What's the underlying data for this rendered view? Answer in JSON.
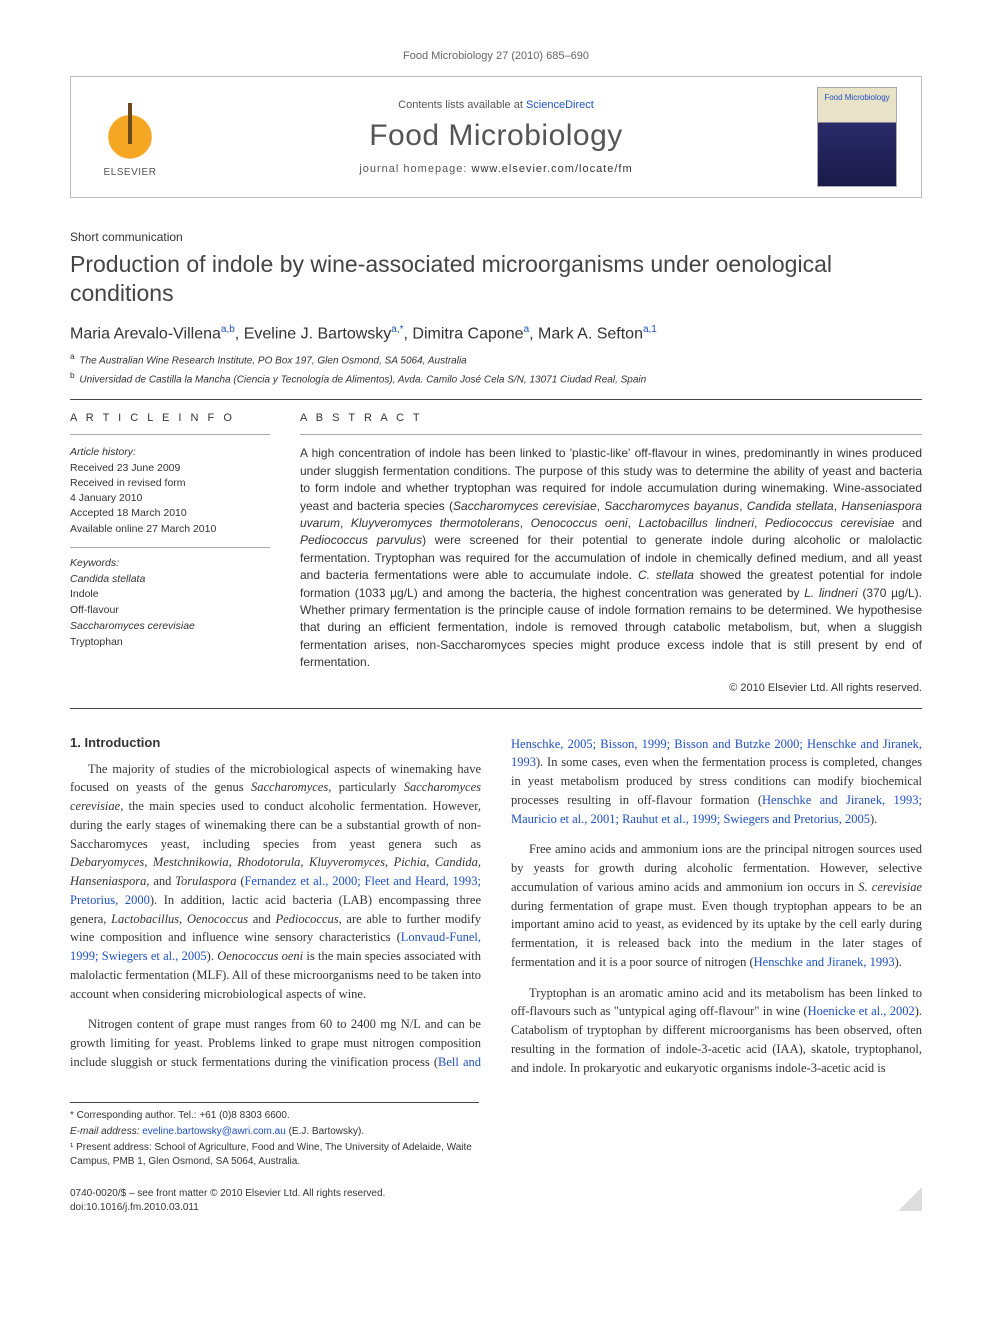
{
  "running_head": "Food Microbiology 27 (2010) 685–690",
  "masthead": {
    "publisher_label": "ELSEVIER",
    "contents_prefix": "Contents lists available at ",
    "contents_link": "ScienceDirect",
    "journal": "Food Microbiology",
    "homepage_prefix": "journal homepage: ",
    "homepage_url": "www.elsevier.com/locate/fm",
    "cover_label": "Food Microbiology"
  },
  "article": {
    "type": "Short communication",
    "title": "Production of indole by wine-associated microorganisms under oenological conditions",
    "authors_html": "Maria Arevalo-Villena<sup>a,b</sup>, Eveline J. Bartowsky<sup>a,*</sup>, Dimitra Capone<sup>a</sup>, Mark A. Sefton<sup>a,1</sup>",
    "affiliations": [
      {
        "sup": "a",
        "text": "The Australian Wine Research Institute, PO Box 197, Glen Osmond, SA 5064, Australia"
      },
      {
        "sup": "b",
        "text": "Universidad de Castilla la Mancha (Ciencia y Tecnología de Alimentos), Avda. Camilo José Cela S/N, 13071 Ciudad Real, Spain"
      }
    ]
  },
  "info": {
    "heading": "A R T I C L E   I N F O",
    "history_label": "Article history:",
    "received": "Received 23 June 2009",
    "revised1": "Received in revised form",
    "revised2": "4 January 2010",
    "accepted": "Accepted 18 March 2010",
    "online": "Available online 27 March 2010",
    "keywords_label": "Keywords:",
    "keywords": [
      {
        "text": "Candida stellata",
        "italic": true
      },
      {
        "text": "Indole",
        "italic": false
      },
      {
        "text": "Off-flavour",
        "italic": false
      },
      {
        "text": "Saccharomyces cerevisiae",
        "italic": true
      },
      {
        "text": "Tryptophan",
        "italic": false
      }
    ]
  },
  "abstract": {
    "heading": "A B S T R A C T",
    "text": "A high concentration of indole has been linked to 'plastic-like' off-flavour in wines, predominantly in wines produced under sluggish fermentation conditions. The purpose of this study was to determine the ability of yeast and bacteria to form indole and whether tryptophan was required for indole accumulation during winemaking. Wine-associated yeast and bacteria species (Saccharomyces cerevisiae, Saccharomyces bayanus, Candida stellata, Hanseniaspora uvarum, Kluyveromyces thermotolerans, Oenococcus oeni, Lactobacillus lindneri, Pediococcus cerevisiae and Pediococcus parvulus) were screened for their potential to generate indole during alcoholic or malolactic fermentation. Tryptophan was required for the accumulation of indole in chemically defined medium, and all yeast and bacteria fermentations were able to accumulate indole. C. stellata showed the greatest potential for indole formation (1033 µg/L) and among the bacteria, the highest concentration was generated by L. lindneri (370 µg/L). Whether primary fermentation is the principle cause of indole formation remains to be determined. We hypothesise that during an efficient fermentation, indole is removed through catabolic metabolism, but, when a sluggish fermentation arises, non-Saccharomyces species might produce excess indole that is still present by end of fermentation.",
    "copyright": "© 2010 Elsevier Ltd. All rights reserved."
  },
  "body": {
    "section1_head": "1. Introduction",
    "p1": "The majority of studies of the microbiological aspects of winemaking have focused on yeasts of the genus Saccharomyces, particularly Saccharomyces cerevisiae, the main species used to conduct alcoholic fermentation. However, during the early stages of winemaking there can be a substantial growth of non-Saccharomyces yeast, including species from yeast genera such as Debaryomyces, Mestchnikowia, Rhodotorula, Kluyveromyces, Pichia, Candida, Hanseniaspora, and Torulaspora (Fernandez et al., 2000; Fleet and Heard, 1993; Pretorius, 2000). In addition, lactic acid bacteria (LAB) encompassing three genera, Lactobacillus, Oenococcus and Pediococcus, are able to further modify wine composition and influence wine sensory characteristics (Lonvaud-Funel, 1999; Swiegers et al., 2005). Oenococcus oeni is the main species associated with malolactic fermentation (MLF). All of these microorganisms need to be taken into account when considering microbiological aspects of wine.",
    "p2": "Nitrogen content of grape must ranges from 60 to 2400 mg N/L and can be growth limiting for yeast. Problems linked to grape must nitrogen composition include sluggish or stuck fermentations during the vinification process (Bell and Henschke, 2005; Bisson, 1999; Bisson and Butzke 2000; Henschke and Jiranek, 1993). In some cases, even when the fermentation process is completed, changes in yeast metabolism produced by stress conditions can modify biochemical processes resulting in off-flavour formation (Henschke and Jiranek, 1993; Mauricio et al., 2001; Rauhut et al., 1999; Swiegers and Pretorius, 2005).",
    "p3": "Free amino acids and ammonium ions are the principal nitrogen sources used by yeasts for growth during alcoholic fermentation. However, selective accumulation of various amino acids and ammonium ion occurs in S. cerevisiae during fermentation of grape must. Even though tryptophan appears to be an important amino acid to yeast, as evidenced by its uptake by the cell early during fermentation, it is released back into the medium in the later stages of fermentation and it is a poor source of nitrogen (Henschke and Jiranek, 1993).",
    "p4": "Tryptophan is an aromatic amino acid and its metabolism has been linked to off-flavours such as \"untypical aging off-flavour\" in wine (Hoenicke et al., 2002). Catabolism of tryptophan by different microorganisms has been observed, often resulting in the formation of indole-3-acetic acid (IAA), skatole, tryptophanol, and indole. In prokaryotic and eukaryotic organisms indole-3-acetic acid is"
  },
  "footnotes": {
    "corr": "* Corresponding author. Tel.: +61 (0)8 8303 6600.",
    "email_label": "E-mail address: ",
    "email": "eveline.bartowsky@awri.com.au",
    "email_tail": " (E.J. Bartowsky).",
    "present": "¹ Present address: School of Agriculture, Food and Wine, The University of Adelaide, Waite Campus, PMB 1, Glen Osmond, SA 5064, Australia."
  },
  "bottom": {
    "issn_line": "0740-0020/$ – see front matter © 2010 Elsevier Ltd. All rights reserved.",
    "doi_line": "doi:10.1016/j.fm.2010.03.011"
  },
  "colors": {
    "link": "#2050c0",
    "text": "#333333",
    "rule": "#444444",
    "border": "#bbbbbb"
  }
}
